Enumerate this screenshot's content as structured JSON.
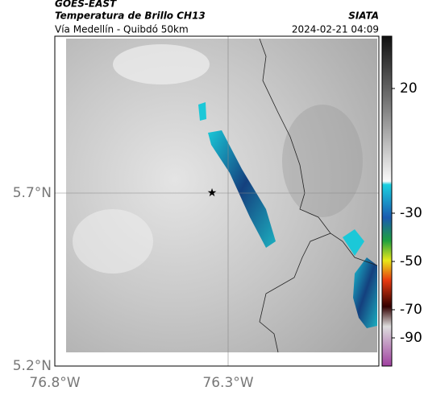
{
  "header": {
    "satellite": "GOES-EAST",
    "product": "Temperatura de Brillo CH13",
    "source": "SIATA",
    "subtitle": "Vía Medellín - Quibdó 50km",
    "timestamp": "2024-02-21 04:09"
  },
  "map": {
    "lat_labels": [
      "5.7°N",
      "5.2°N"
    ],
    "lon_labels": [
      "76.8°W",
      "76.3°W"
    ]
  },
  "colorbar": {
    "labels": [
      "20",
      "-30",
      "-50",
      "-70",
      "-90"
    ]
  }
}
